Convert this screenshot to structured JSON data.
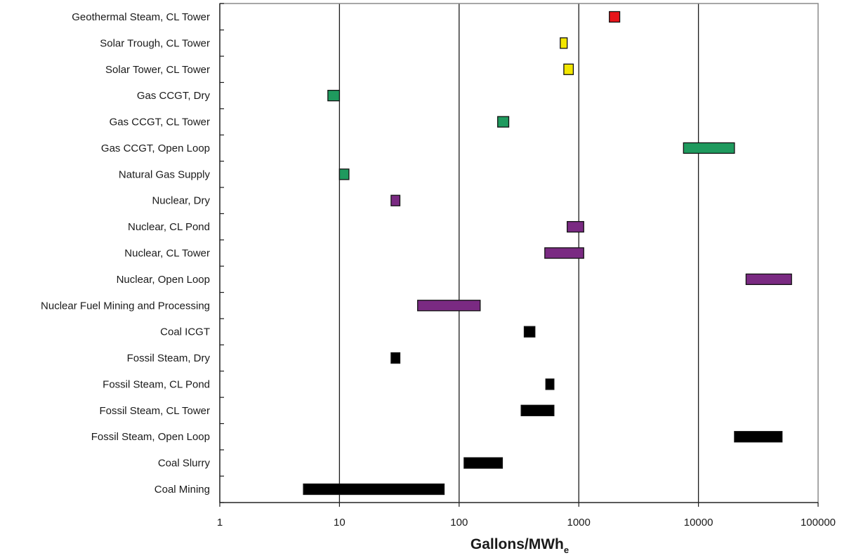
{
  "chart_data": {
    "type": "range-bar",
    "xlabel": "Gallons/MWh",
    "xlabel_subscript": "e",
    "x_scale": "log",
    "xlim": [
      1,
      100000
    ],
    "x_ticks": [
      1,
      10,
      100,
      1000,
      10000,
      100000
    ],
    "x_tick_labels": [
      "1",
      "10",
      "100",
      "1000",
      "10000",
      "100000"
    ],
    "grid": "vertical major gridlines",
    "colors": {
      "geothermal": "#e8151b",
      "solar": "#f2e600",
      "gas": "#1f9a5e",
      "nuclear": "#7a2a82",
      "coal": "#000000"
    },
    "categories": [
      "Geothermal Steam, CL Tower",
      "Solar Trough, CL Tower",
      "Solar Tower, CL Tower",
      "Gas CCGT, Dry",
      "Gas CCGT, CL Tower",
      "Gas CCGT, Open Loop",
      "Natural Gas Supply",
      "Nuclear, Dry",
      "Nuclear, CL Pond",
      "Nuclear, CL Tower",
      "Nuclear, Open Loop",
      "Nuclear Fuel Mining and Processing",
      "Coal ICGT",
      "Fossil Steam, Dry",
      "Fossil Steam, CL Pond",
      "Fossil Steam, CL Tower",
      "Fossil Steam, Open Loop",
      "Coal Slurry",
      "Coal Mining"
    ],
    "ranges": [
      {
        "min": 1800,
        "max": 2200,
        "color_key": "geothermal"
      },
      {
        "min": 700,
        "max": 800,
        "color_key": "solar"
      },
      {
        "min": 750,
        "max": 900,
        "color_key": "solar"
      },
      {
        "min": 8,
        "max": 10,
        "color_key": "gas"
      },
      {
        "min": 210,
        "max": 260,
        "color_key": "gas"
      },
      {
        "min": 7500,
        "max": 20000,
        "color_key": "gas"
      },
      {
        "min": 10,
        "max": 12,
        "color_key": "gas"
      },
      {
        "min": 27,
        "max": 32,
        "color_key": "nuclear"
      },
      {
        "min": 800,
        "max": 1100,
        "color_key": "nuclear"
      },
      {
        "min": 520,
        "max": 1100,
        "color_key": "nuclear"
      },
      {
        "min": 25000,
        "max": 60000,
        "color_key": "nuclear"
      },
      {
        "min": 45,
        "max": 150,
        "color_key": "nuclear"
      },
      {
        "min": 350,
        "max": 430,
        "color_key": "coal"
      },
      {
        "min": 27,
        "max": 32,
        "color_key": "coal"
      },
      {
        "min": 530,
        "max": 620,
        "color_key": "coal"
      },
      {
        "min": 330,
        "max": 620,
        "color_key": "coal"
      },
      {
        "min": 20000,
        "max": 50000,
        "color_key": "coal"
      },
      {
        "min": 110,
        "max": 230,
        "color_key": "coal"
      },
      {
        "min": 5,
        "max": 75,
        "color_key": "coal"
      }
    ]
  }
}
